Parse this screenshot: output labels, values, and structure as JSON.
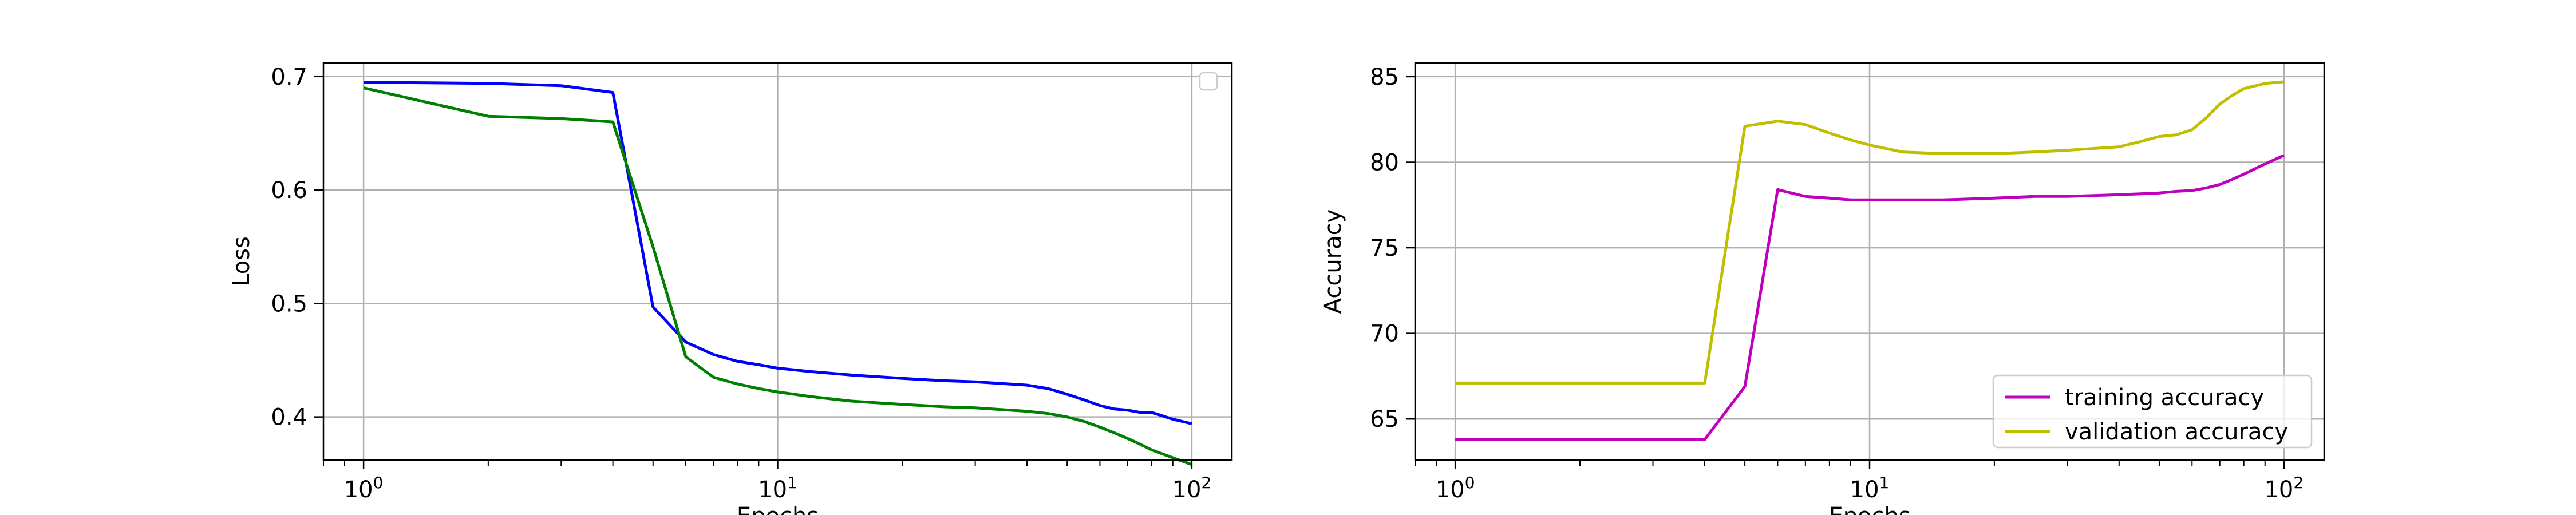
{
  "chart_data": [
    {
      "type": "line",
      "xscale": "log",
      "xlim": [
        0.8,
        125
      ],
      "ylim": [
        0.362,
        0.712
      ],
      "xticks": [
        {
          "value": 1,
          "label": "10",
          "exp": "0"
        },
        {
          "value": 10,
          "label": "10",
          "exp": "1"
        },
        {
          "value": 100,
          "label": "10",
          "exp": "2"
        }
      ],
      "yticks": [
        {
          "value": 0.4,
          "label": "0.4"
        },
        {
          "value": 0.5,
          "label": "0.5"
        },
        {
          "value": 0.6,
          "label": "0.6"
        },
        {
          "value": 0.7,
          "label": "0.7"
        }
      ],
      "xlabel": "Epochs",
      "ylabel": "Loss",
      "grid": true,
      "legend": {
        "position": "top-right",
        "entries": []
      },
      "series": [
        {
          "color": "#0000ff",
          "x": [
            1,
            2,
            3,
            4,
            5,
            6,
            7,
            8,
            9,
            10,
            12,
            15,
            20,
            25,
            30,
            40,
            45,
            50,
            55,
            60,
            65,
            70,
            75,
            80,
            90,
            100
          ],
          "y": [
            0.695,
            0.694,
            0.692,
            0.686,
            0.497,
            0.466,
            0.455,
            0.449,
            0.446,
            0.443,
            0.44,
            0.437,
            0.434,
            0.432,
            0.431,
            0.428,
            0.425,
            0.42,
            0.415,
            0.41,
            0.407,
            0.406,
            0.404,
            0.404,
            0.398,
            0.394
          ]
        },
        {
          "color": "#008000",
          "x": [
            1,
            2,
            3,
            4,
            5,
            6,
            7,
            8,
            9,
            10,
            12,
            15,
            20,
            25,
            30,
            40,
            45,
            50,
            55,
            60,
            65,
            70,
            75,
            80,
            90,
            100
          ],
          "y": [
            0.69,
            0.665,
            0.663,
            0.66,
            0.55,
            0.453,
            0.435,
            0.429,
            0.425,
            0.422,
            0.418,
            0.414,
            0.411,
            0.409,
            0.408,
            0.405,
            0.403,
            0.4,
            0.396,
            0.391,
            0.386,
            0.381,
            0.376,
            0.371,
            0.364,
            0.358
          ]
        }
      ]
    },
    {
      "type": "line",
      "xscale": "log",
      "xlim": [
        0.8,
        125
      ],
      "ylim": [
        62.6,
        85.8
      ],
      "xticks": [
        {
          "value": 1,
          "label": "10",
          "exp": "0"
        },
        {
          "value": 10,
          "label": "10",
          "exp": "1"
        },
        {
          "value": 100,
          "label": "10",
          "exp": "2"
        }
      ],
      "yticks": [
        {
          "value": 65,
          "label": "65"
        },
        {
          "value": 70,
          "label": "70"
        },
        {
          "value": 75,
          "label": "75"
        },
        {
          "value": 80,
          "label": "80"
        },
        {
          "value": 85,
          "label": "85"
        }
      ],
      "xlabel": "Epochs",
      "ylabel": "Accuracy",
      "grid": true,
      "legend": {
        "position": "bottom-right",
        "entries": [
          "training accuracy",
          "validation accuracy"
        ]
      },
      "series": [
        {
          "name": "training accuracy",
          "color": "#bf00bf",
          "x": [
            1,
            2,
            3,
            4,
            5,
            6,
            7,
            8,
            9,
            10,
            12,
            15,
            20,
            25,
            30,
            40,
            45,
            50,
            55,
            60,
            65,
            70,
            75,
            80,
            90,
            100
          ],
          "y": [
            63.8,
            63.8,
            63.8,
            63.8,
            66.9,
            78.4,
            78.0,
            77.9,
            77.8,
            77.8,
            77.8,
            77.8,
            77.9,
            78.0,
            78.0,
            78.1,
            78.15,
            78.2,
            78.3,
            78.35,
            78.5,
            78.7,
            79.0,
            79.3,
            79.9,
            80.4
          ]
        },
        {
          "name": "validation accuracy",
          "color": "#bfbf00",
          "x": [
            1,
            2,
            3,
            4,
            5,
            6,
            7,
            8,
            9,
            10,
            12,
            15,
            20,
            25,
            30,
            40,
            45,
            50,
            55,
            60,
            65,
            70,
            75,
            80,
            90,
            100
          ],
          "y": [
            67.1,
            67.1,
            67.1,
            67.1,
            82.1,
            82.4,
            82.2,
            81.7,
            81.3,
            81.0,
            80.6,
            80.5,
            80.5,
            80.6,
            80.7,
            80.9,
            81.2,
            81.5,
            81.6,
            81.9,
            82.6,
            83.4,
            83.9,
            84.3,
            84.6,
            84.7
          ]
        }
      ]
    }
  ]
}
